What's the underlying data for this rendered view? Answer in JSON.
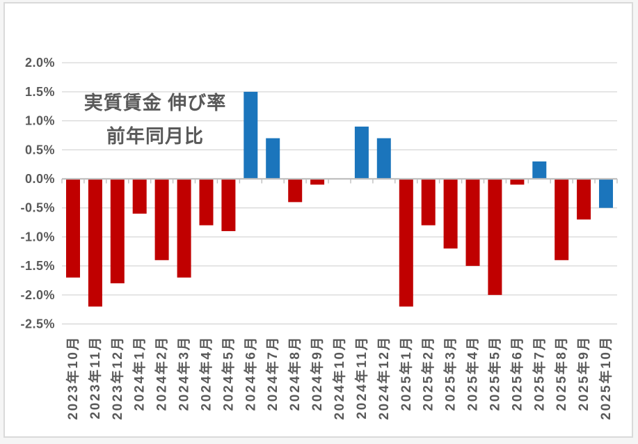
{
  "chart_data": {
    "type": "bar",
    "title": "実質賃金 伸び率",
    "subtitle": "前年同月比",
    "xlabel": "",
    "ylabel": "",
    "ylim": [
      -2.5,
      2.0
    ],
    "grid": true,
    "legend": "none",
    "y_tick_labels": [
      "2.0%",
      "1.5%",
      "1.0%",
      "0.5%",
      "0.0%",
      "-0.5%",
      "-1.0%",
      "-1.5%",
      "-2.0%",
      "-2.5%"
    ],
    "y_tick_values": [
      2.0,
      1.5,
      1.0,
      0.5,
      0.0,
      -0.5,
      -1.0,
      -1.5,
      -2.0,
      -2.5
    ],
    "categories": [
      "2023年10月",
      "2023年11月",
      "2023年12月",
      "2024年1月",
      "2024年2月",
      "2024年3月",
      "2024年4月",
      "2024年5月",
      "2024年6月",
      "2024年7月",
      "2024年8月",
      "2024年9月",
      "2024年10月",
      "2024年11月",
      "2024年12月",
      "2025年1月",
      "2025年2月",
      "2025年3月",
      "2025年4月",
      "2025年5月",
      "2025年6月",
      "2025年7月",
      "2025年8月",
      "2025年9月",
      "2025年10月"
    ],
    "values": [
      -1.7,
      -2.2,
      -1.8,
      -0.6,
      -1.4,
      -1.7,
      -0.8,
      -0.9,
      1.5,
      0.7,
      -0.4,
      -0.1,
      0.0,
      0.9,
      0.7,
      -2.2,
      -0.8,
      -1.2,
      -1.5,
      -2.0,
      -0.1,
      0.3,
      -1.4,
      -0.7,
      -0.5
    ],
    "bar_colors": [
      "red",
      "red",
      "red",
      "red",
      "red",
      "red",
      "red",
      "red",
      "blue",
      "blue",
      "red",
      "red",
      "none",
      "blue",
      "blue",
      "red",
      "red",
      "red",
      "red",
      "red",
      "red",
      "blue",
      "red",
      "red",
      "blue"
    ],
    "colors": {
      "red": "#C00000",
      "blue": "#1B75BC",
      "gridline": "#D9D9D9",
      "axis": "#BFBFBF",
      "label": "#595959",
      "frame": "#D9D9D9",
      "background": "#FFFFFF"
    }
  }
}
